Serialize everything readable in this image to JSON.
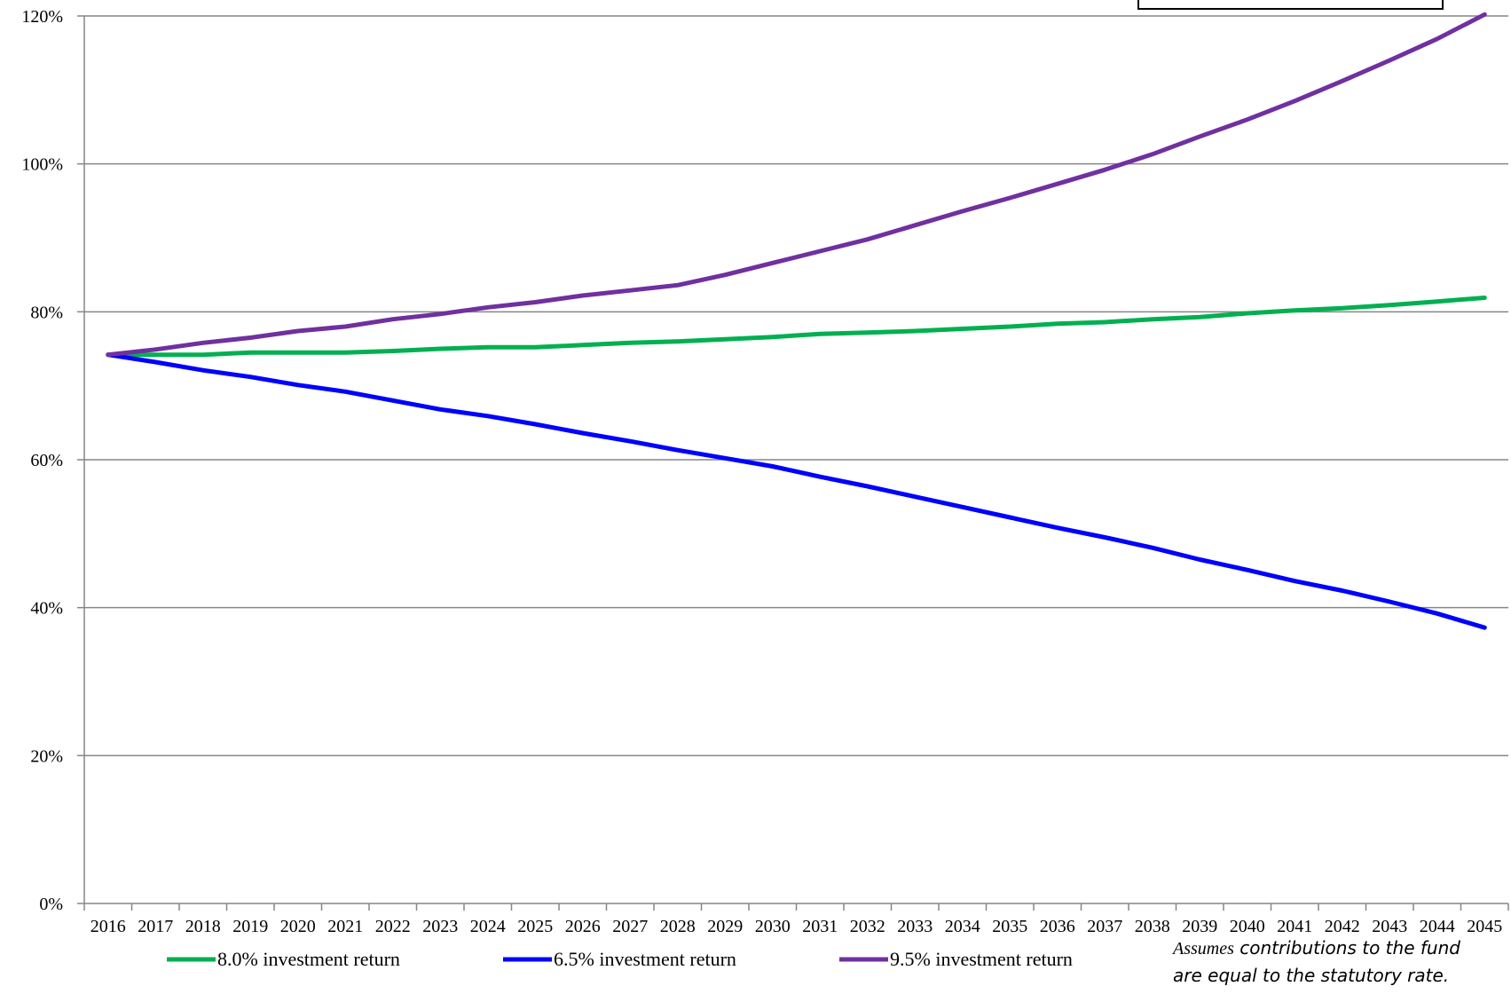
{
  "chart_data": {
    "type": "line",
    "title": "",
    "xlabel": "",
    "ylabel": "",
    "x": [
      "2016",
      "2017",
      "2018",
      "2019",
      "2020",
      "2021",
      "2022",
      "2023",
      "2024",
      "2025",
      "2026",
      "2027",
      "2028",
      "2029",
      "2030",
      "2031",
      "2032",
      "2033",
      "2034",
      "2035",
      "2036",
      "2037",
      "2038",
      "2039",
      "2040",
      "2041",
      "2042",
      "2043",
      "2044",
      "2045"
    ],
    "ylim": [
      0,
      120
    ],
    "yticks": [
      0,
      20,
      40,
      60,
      80,
      100,
      120
    ],
    "ytick_labels": [
      "0%",
      "20%",
      "40%",
      "60%",
      "80%",
      "100%",
      "120%"
    ],
    "grid": true,
    "legend_position": "bottom",
    "series": [
      {
        "name": "8.0% investment return",
        "color": "#00b050",
        "values": [
          74.2,
          74.2,
          74.2,
          74.5,
          74.5,
          74.5,
          74.7,
          75.0,
          75.2,
          75.2,
          75.5,
          75.8,
          76.0,
          76.3,
          76.6,
          77.0,
          77.2,
          77.4,
          77.7,
          78.0,
          78.4,
          78.6,
          79.0,
          79.3,
          79.8,
          80.2,
          80.5,
          80.9,
          81.4,
          81.9
        ]
      },
      {
        "name": "6.5% investment return",
        "color": "#0000ff",
        "values": [
          74.2,
          73.2,
          72.1,
          71.2,
          70.1,
          69.2,
          68.0,
          66.8,
          65.9,
          64.8,
          63.6,
          62.5,
          61.3,
          60.2,
          59.1,
          57.7,
          56.4,
          55.0,
          53.6,
          52.2,
          50.8,
          49.5,
          48.1,
          46.5,
          45.1,
          43.6,
          42.3,
          40.8,
          39.2,
          37.3
        ]
      },
      {
        "name": "9.5% investment return",
        "color": "#7030a0",
        "values": [
          74.2,
          74.9,
          75.8,
          76.5,
          77.4,
          78.0,
          79.0,
          79.7,
          80.6,
          81.3,
          82.2,
          82.9,
          83.6,
          85.0,
          86.6,
          88.2,
          89.8,
          91.7,
          93.6,
          95.4,
          97.3,
          99.2,
          101.3,
          103.7,
          106.0,
          108.5,
          111.2,
          114.0,
          116.9,
          120.2
        ]
      }
    ]
  },
  "note": {
    "line1_em": "Assumes",
    "line1_rest": " contributions to the fund",
    "line2": "are equal to the statutory rate."
  },
  "colors": {
    "grid": "#868686",
    "axis": "#868686"
  }
}
